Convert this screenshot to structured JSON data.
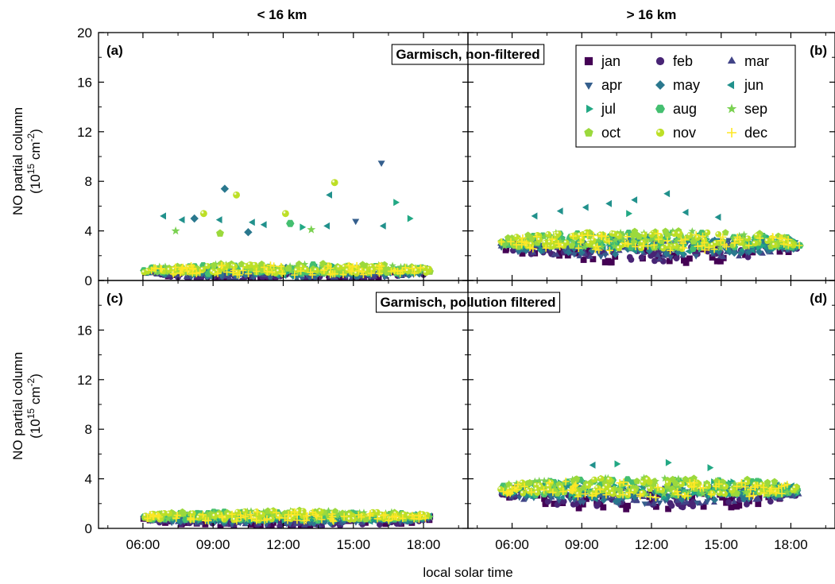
{
  "chart_data": {
    "type": "scatter",
    "column_titles": [
      "< 16 km",
      "> 16 km"
    ],
    "xlabel": "local solar time",
    "ylabel_line1": "NO partial column",
    "ylabel_line2_base": "(10",
    "ylabel_line2_exp1": "15",
    "ylabel_line2_mid": " cm",
    "ylabel_line2_exp2": "-2",
    "ylabel_line2_end": ")",
    "xlim_hours": [
      4.1,
      19.9
    ],
    "ylim": [
      0,
      20
    ],
    "x_ticks": [
      "06:00",
      "09:00",
      "12:00",
      "15:00",
      "18:00"
    ],
    "x_tick_hours": [
      6,
      9,
      12,
      15,
      18
    ],
    "y_ticks": [
      "0",
      "4",
      "8",
      "12",
      "16",
      "20"
    ],
    "y_tick_values": [
      0,
      4,
      8,
      12,
      16,
      20
    ],
    "legend_placement": "top-right of panel (b)",
    "legend": [
      {
        "label": "jan",
        "marker": "square",
        "color": "#440154"
      },
      {
        "label": "feb",
        "marker": "circle",
        "color": "#482475"
      },
      {
        "label": "mar",
        "marker": "triangle-up",
        "color": "#414487"
      },
      {
        "label": "apr",
        "marker": "triangle-down",
        "color": "#355f8d"
      },
      {
        "label": "may",
        "marker": "diamond",
        "color": "#2a788e"
      },
      {
        "label": "jun",
        "marker": "triangle-left",
        "color": "#21918c"
      },
      {
        "label": "jul",
        "marker": "triangle-right",
        "color": "#22a884"
      },
      {
        "label": "aug",
        "marker": "hexagon",
        "color": "#44bf70"
      },
      {
        "label": "sep",
        "marker": "star",
        "color": "#7ad151"
      },
      {
        "label": "oct",
        "marker": "pentagon",
        "color": "#9bd93c"
      },
      {
        "label": "nov",
        "marker": "sphere",
        "color": "#bddf26"
      },
      {
        "label": "dec",
        "marker": "plus",
        "color": "#fde725"
      }
    ],
    "panels": [
      {
        "id": "a",
        "label": "(a)",
        "column": 0,
        "row": 0,
        "box_title": "Garmisch, non-filtered",
        "legend": false,
        "cluster": {
          "x_range": [
            6.0,
            18.3
          ],
          "y_center": 0.8,
          "y_halfwidth": 0.75
        },
        "outliers": [
          {
            "month": "apr",
            "x": 16.2,
            "y": 9.5
          },
          {
            "month": "nov",
            "x": 14.2,
            "y": 7.9
          },
          {
            "month": "may",
            "x": 9.5,
            "y": 7.4
          },
          {
            "month": "nov",
            "x": 10.0,
            "y": 6.9
          },
          {
            "month": "jun",
            "x": 14.0,
            "y": 6.9
          },
          {
            "month": "jul",
            "x": 16.8,
            "y": 6.3
          },
          {
            "month": "nov",
            "x": 8.6,
            "y": 5.4
          },
          {
            "month": "nov",
            "x": 12.1,
            "y": 5.4
          },
          {
            "month": "jun",
            "x": 6.9,
            "y": 5.2
          },
          {
            "month": "jul",
            "x": 17.4,
            "y": 5.0
          },
          {
            "month": "may",
            "x": 8.2,
            "y": 5.0
          },
          {
            "month": "jun",
            "x": 7.7,
            "y": 4.9
          },
          {
            "month": "jun",
            "x": 9.3,
            "y": 4.9
          },
          {
            "month": "jun",
            "x": 10.7,
            "y": 4.7
          },
          {
            "month": "aug",
            "x": 12.3,
            "y": 4.6
          },
          {
            "month": "apr",
            "x": 15.1,
            "y": 4.8
          },
          {
            "month": "jun",
            "x": 11.2,
            "y": 4.5
          },
          {
            "month": "jul",
            "x": 12.8,
            "y": 4.3
          },
          {
            "month": "sep",
            "x": 13.2,
            "y": 4.1
          },
          {
            "month": "sep",
            "x": 7.4,
            "y": 4.0
          },
          {
            "month": "jun",
            "x": 13.9,
            "y": 4.4
          },
          {
            "month": "oct",
            "x": 9.3,
            "y": 3.8
          },
          {
            "month": "may",
            "x": 10.5,
            "y": 3.9
          },
          {
            "month": "jun",
            "x": 16.3,
            "y": 4.4
          }
        ]
      },
      {
        "id": "b",
        "label": "(b)",
        "column": 1,
        "row": 0,
        "box_title": "",
        "legend": true,
        "cluster": {
          "x_range": [
            5.5,
            18.4
          ],
          "y_center": 3.0,
          "y_halfwidth": 1.3
        },
        "outliers": [
          {
            "month": "jun",
            "x": 12.7,
            "y": 7.0
          },
          {
            "month": "jun",
            "x": 11.3,
            "y": 6.5
          },
          {
            "month": "jun",
            "x": 10.2,
            "y": 6.2
          },
          {
            "month": "jun",
            "x": 9.2,
            "y": 5.9
          },
          {
            "month": "jun",
            "x": 8.1,
            "y": 5.6
          },
          {
            "month": "jun",
            "x": 13.5,
            "y": 5.5
          },
          {
            "month": "jun",
            "x": 7.0,
            "y": 5.2
          },
          {
            "month": "jul",
            "x": 11.0,
            "y": 5.4
          },
          {
            "month": "jun",
            "x": 14.9,
            "y": 5.1
          }
        ]
      },
      {
        "id": "c",
        "label": "(c)",
        "column": 0,
        "row": 1,
        "box_title": "Garmisch, pollution filtered",
        "legend": false,
        "cluster": {
          "x_range": [
            6.0,
            18.3
          ],
          "y_center": 0.9,
          "y_halfwidth": 0.7
        },
        "outliers": []
      },
      {
        "id": "d",
        "label": "(d)",
        "column": 1,
        "row": 1,
        "box_title": "",
        "legend": false,
        "cluster": {
          "x_range": [
            5.5,
            18.4
          ],
          "y_center": 3.1,
          "y_halfwidth": 1.3
        },
        "outliers": [
          {
            "month": "jul",
            "x": 12.7,
            "y": 5.3
          },
          {
            "month": "jul",
            "x": 10.5,
            "y": 5.2
          },
          {
            "month": "jun",
            "x": 9.5,
            "y": 5.1
          },
          {
            "month": "jul",
            "x": 14.5,
            "y": 4.9
          }
        ]
      }
    ]
  }
}
